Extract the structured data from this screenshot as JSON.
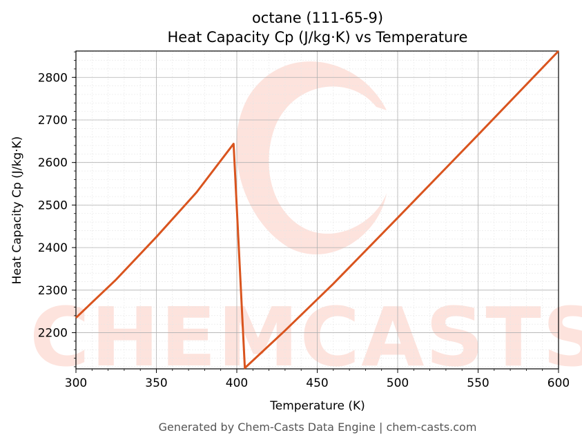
{
  "chart_data": {
    "type": "line",
    "title_lines": [
      "octane (111-65-9)",
      "Heat Capacity Cp (J/kg·K) vs Temperature"
    ],
    "xlabel": "Temperature (K)",
    "ylabel": "Heat Capacity Cp (J/kg·K)",
    "xlim": [
      300,
      600
    ],
    "ylim": [
      2115,
      2862
    ],
    "x_ticks": [
      300,
      350,
      400,
      450,
      500,
      550,
      600
    ],
    "y_ticks": [
      2200,
      2300,
      2400,
      2500,
      2600,
      2700,
      2800
    ],
    "grid": true,
    "line_color": "#d9541e",
    "series": [
      {
        "x": [
          300,
          325,
          350,
          375,
          398,
          405,
          430,
          460,
          500,
          550,
          600
        ],
        "values": [
          2235,
          2325,
          2425,
          2530,
          2644,
          2117,
          2205,
          2315,
          2470,
          2665,
          2862
        ]
      }
    ]
  },
  "watermark": {
    "text": "CHEMCASTS",
    "color": "#fde3dd"
  },
  "footer": "Generated by Chem-Casts Data Engine | chem-casts.com"
}
